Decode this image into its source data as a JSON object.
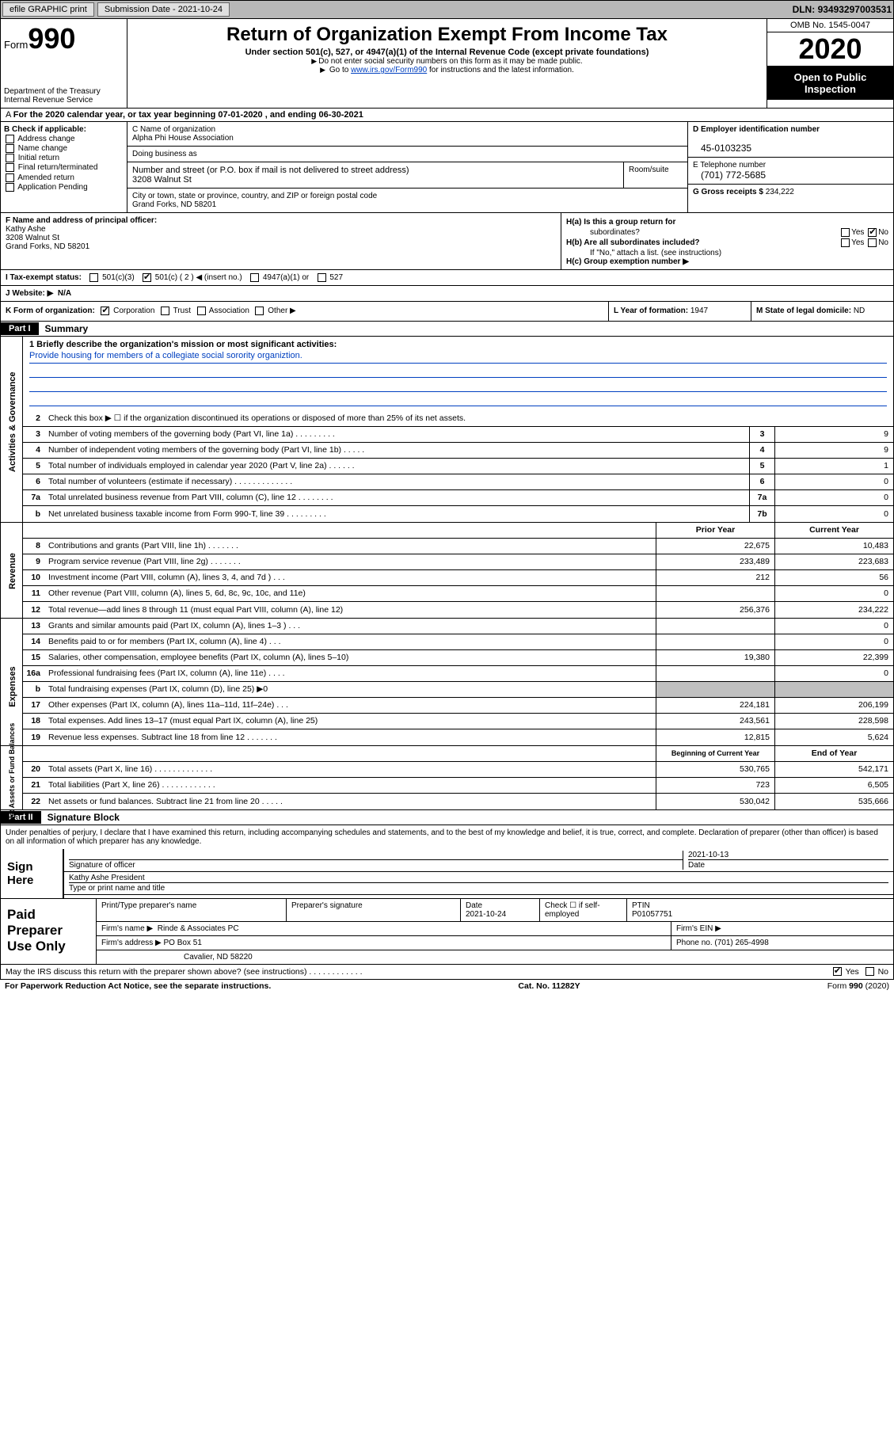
{
  "topbar": {
    "efile": "efile GRAPHIC print",
    "subdate_label": "Submission Date - ",
    "subdate": "2021-10-24",
    "dln_label": "DLN: ",
    "dln": "93493297003531"
  },
  "header": {
    "form_label": "Form",
    "form_num": "990",
    "dept": "Department of the Treasury\nInternal Revenue Service",
    "title": "Return of Organization Exempt From Income Tax",
    "sub": "Under section 501(c), 527, or 4947(a)(1) of the Internal Revenue Code (except private foundations)",
    "note1": "Do not enter social security numbers on this form as it may be made public.",
    "note2_a": "Go to ",
    "note2_link": "www.irs.gov/Form990",
    "note2_b": " for instructions and the latest information.",
    "omb": "OMB No. 1545-0047",
    "year": "2020",
    "inspect": "Open to Public Inspection"
  },
  "period": "For the 2020 calendar year, or tax year beginning 07-01-2020     , and ending 06-30-2021",
  "colB": {
    "hdr": "B Check if applicable:",
    "items": [
      "Address change",
      "Name change",
      "Initial return",
      "Final return/terminated",
      "Amended return",
      "Application Pending"
    ]
  },
  "colC": {
    "name_lbl": "C Name of organization",
    "name": "Alpha Phi House Association",
    "dba_lbl": "Doing business as",
    "dba": "",
    "addr_lbl": "Number and street (or P.O. box if mail is not delivered to street address)",
    "addr": "3208 Walnut St",
    "room_lbl": "Room/suite",
    "city_lbl": "City or town, state or province, country, and ZIP or foreign postal code",
    "city": "Grand Forks, ND  58201"
  },
  "colD": {
    "ein_lbl": "D Employer identification number",
    "ein": "45-0103235",
    "phone_lbl": "E Telephone number",
    "phone": "(701) 772-5685",
    "gross_lbl": "G Gross receipts $ ",
    "gross": "234,222"
  },
  "rowF": {
    "lbl": "F  Name and address of principal officer:",
    "name": "Kathy Ashe",
    "addr1": "3208 Walnut St",
    "addr2": "Grand Forks, ND  58201"
  },
  "rowH": {
    "ha": "H(a)  Is this a group return for",
    "ha2": "subordinates?",
    "hb": "H(b)  Are all subordinates included?",
    "hb_note": "If \"No,\" attach a list. (see instructions)",
    "hc": "H(c)  Group exemption number ▶",
    "yes": "Yes",
    "no": "No"
  },
  "rowI": {
    "lbl": "I     Tax-exempt status:",
    "o1": "501(c)(3)",
    "o2": "501(c) ( 2 ) ◀ (insert no.)",
    "o3": "4947(a)(1) or",
    "o4": "527"
  },
  "rowJ": {
    "lbl": "J    Website: ▶",
    "val": "N/A"
  },
  "rowK": {
    "lbl": "K Form of organization:",
    "o1": "Corporation",
    "o2": "Trust",
    "o3": "Association",
    "o4": "Other ▶"
  },
  "rowL": {
    "lbl": "L Year of formation: ",
    "val": "1947"
  },
  "rowM": {
    "lbl": "M State of legal domicile: ",
    "val": "ND"
  },
  "part1": {
    "hdr": "Part I",
    "title": "Summary"
  },
  "vtabs": {
    "gov": "Activities & Governance",
    "rev": "Revenue",
    "exp": "Expenses",
    "net": "Net Assets or Fund Balances"
  },
  "mission": {
    "q": "1   Briefly describe the organization's mission or most significant activities:",
    "text": "Provide housing for members of a collegiate social sorority organiztion."
  },
  "lines_gov": [
    {
      "n": "2",
      "d": "Check this box ▶ ☐  if the organization discontinued its operations or disposed of more than 25% of its net assets.",
      "box": "",
      "v": ""
    },
    {
      "n": "3",
      "d": "Number of voting members of the governing body (Part VI, line 1a)   .    .    .    .    .    .    .    .    .",
      "box": "3",
      "v": "9"
    },
    {
      "n": "4",
      "d": "Number of independent voting members of the governing body (Part VI, line 1b)   .    .    .    .    .",
      "box": "4",
      "v": "9"
    },
    {
      "n": "5",
      "d": "Total number of individuals employed in calendar year 2020 (Part V, line 2a)   .    .    .    .    .    .",
      "box": "5",
      "v": "1"
    },
    {
      "n": "6",
      "d": "Total number of volunteers (estimate if necessary)   .    .    .    .    .    .    .    .    .    .    .    .    .",
      "box": "6",
      "v": "0"
    },
    {
      "n": "7a",
      "d": "Total unrelated business revenue from Part VIII, column (C), line 12   .    .    .    .    .    .    .    .",
      "box": "7a",
      "v": "0"
    },
    {
      "n": "b",
      "d": "Net unrelated business taxable income from Form 990-T, line 39   .    .    .    .    .    .    .    .    .",
      "box": "7b",
      "v": "0"
    }
  ],
  "col_hdrs": {
    "prior": "Prior Year",
    "current": "Current Year"
  },
  "lines_rev": [
    {
      "n": "8",
      "d": "Contributions and grants (Part VIII, line 1h)   .    .    .    .    .    .    .",
      "p": "22,675",
      "c": "10,483"
    },
    {
      "n": "9",
      "d": "Program service revenue (Part VIII, line 2g)   .    .    .    .    .    .    .",
      "p": "233,489",
      "c": "223,683"
    },
    {
      "n": "10",
      "d": "Investment income (Part VIII, column (A), lines 3, 4, and 7d )   .    .    .",
      "p": "212",
      "c": "56"
    },
    {
      "n": "11",
      "d": "Other revenue (Part VIII, column (A), lines 5, 6d, 8c, 9c, 10c, and 11e)",
      "p": "",
      "c": "0"
    },
    {
      "n": "12",
      "d": "Total revenue—add lines 8 through 11 (must equal Part VIII, column (A), line 12)",
      "p": "256,376",
      "c": "234,222"
    }
  ],
  "lines_exp": [
    {
      "n": "13",
      "d": "Grants and similar amounts paid (Part IX, column (A), lines 1–3 )   .    .    .",
      "p": "",
      "c": "0"
    },
    {
      "n": "14",
      "d": "Benefits paid to or for members (Part IX, column (A), line 4)   .    .    .",
      "p": "",
      "c": "0"
    },
    {
      "n": "15",
      "d": "Salaries, other compensation, employee benefits (Part IX, column (A), lines 5–10)",
      "p": "19,380",
      "c": "22,399"
    },
    {
      "n": "16a",
      "d": "Professional fundraising fees (Part IX, column (A), line 11e)   .    .    .    .",
      "p": "",
      "c": "0"
    },
    {
      "n": "b",
      "d": "Total fundraising expenses (Part IX, column (D), line 25) ▶0",
      "p": "grey",
      "c": "grey"
    },
    {
      "n": "17",
      "d": "Other expenses (Part IX, column (A), lines 11a–11d, 11f–24e)   .    .    .",
      "p": "224,181",
      "c": "206,199"
    },
    {
      "n": "18",
      "d": "Total expenses. Add lines 13–17 (must equal Part IX, column (A), line 25)",
      "p": "243,561",
      "c": "228,598"
    },
    {
      "n": "19",
      "d": "Revenue less expenses. Subtract line 18 from line 12   .    .    .    .    .    .    .",
      "p": "12,815",
      "c": "5,624"
    }
  ],
  "col_hdrs2": {
    "begin": "Beginning of Current Year",
    "end": "End of Year"
  },
  "lines_net": [
    {
      "n": "20",
      "d": "Total assets (Part X, line 16)   .    .    .    .    .    .    .    .    .    .    .    .    .",
      "p": "530,765",
      "c": "542,171"
    },
    {
      "n": "21",
      "d": "Total liabilities (Part X, line 26)   .    .    .    .    .    .    .    .    .    .    .    .",
      "p": "723",
      "c": "6,505"
    },
    {
      "n": "22",
      "d": "Net assets or fund balances. Subtract line 21 from line 20   .    .    .    .    .",
      "p": "530,042",
      "c": "535,666"
    }
  ],
  "part2": {
    "hdr": "Part II",
    "title": "Signature Block"
  },
  "decl": "Under penalties of perjury, I declare that I have examined this return, including accompanying schedules and statements, and to the best of my knowledge and belief, it is true, correct, and complete. Declaration of preparer (other than officer) is based on all information of which preparer has any knowledge.",
  "sign": {
    "here": "Sign Here",
    "sig_lbl": "Signature of officer",
    "date_lbl": "Date",
    "date": "2021-10-13",
    "name": "Kathy Ashe  President",
    "name_lbl": "Type or print name and title"
  },
  "prep": {
    "title": "Paid Preparer Use Only",
    "c1": "Print/Type preparer's name",
    "c2": "Preparer's signature",
    "c3_lbl": "Date",
    "c3": "2021-10-24",
    "c4": "Check ☐  if self-employed",
    "c5_lbl": "PTIN",
    "c5": "P01057751",
    "firm_lbl": "Firm's name      ▶",
    "firm": "Rinde & Associates PC",
    "ein_lbl": "Firm's EIN ▶",
    "addr_lbl": "Firm's address ▶",
    "addr": "PO Box 51",
    "addr2": "Cavalier, ND   58220",
    "phone_lbl": "Phone no. ",
    "phone": "(701) 265-4998"
  },
  "discuss": {
    "q": "May the IRS discuss this return with the preparer shown above? (see instructions)    .    .    .    .    .    .    .    .    .    .    .    .",
    "yes": "Yes",
    "no": "No"
  },
  "footer": {
    "left": "For Paperwork Reduction Act Notice, see the separate instructions.",
    "mid": "Cat. No. 11282Y",
    "right": "Form 990 (2020)"
  },
  "colors": {
    "link": "#0040c0",
    "topbar_bg": "#b8b8b8",
    "grey_cell": "#c0c0c0"
  }
}
